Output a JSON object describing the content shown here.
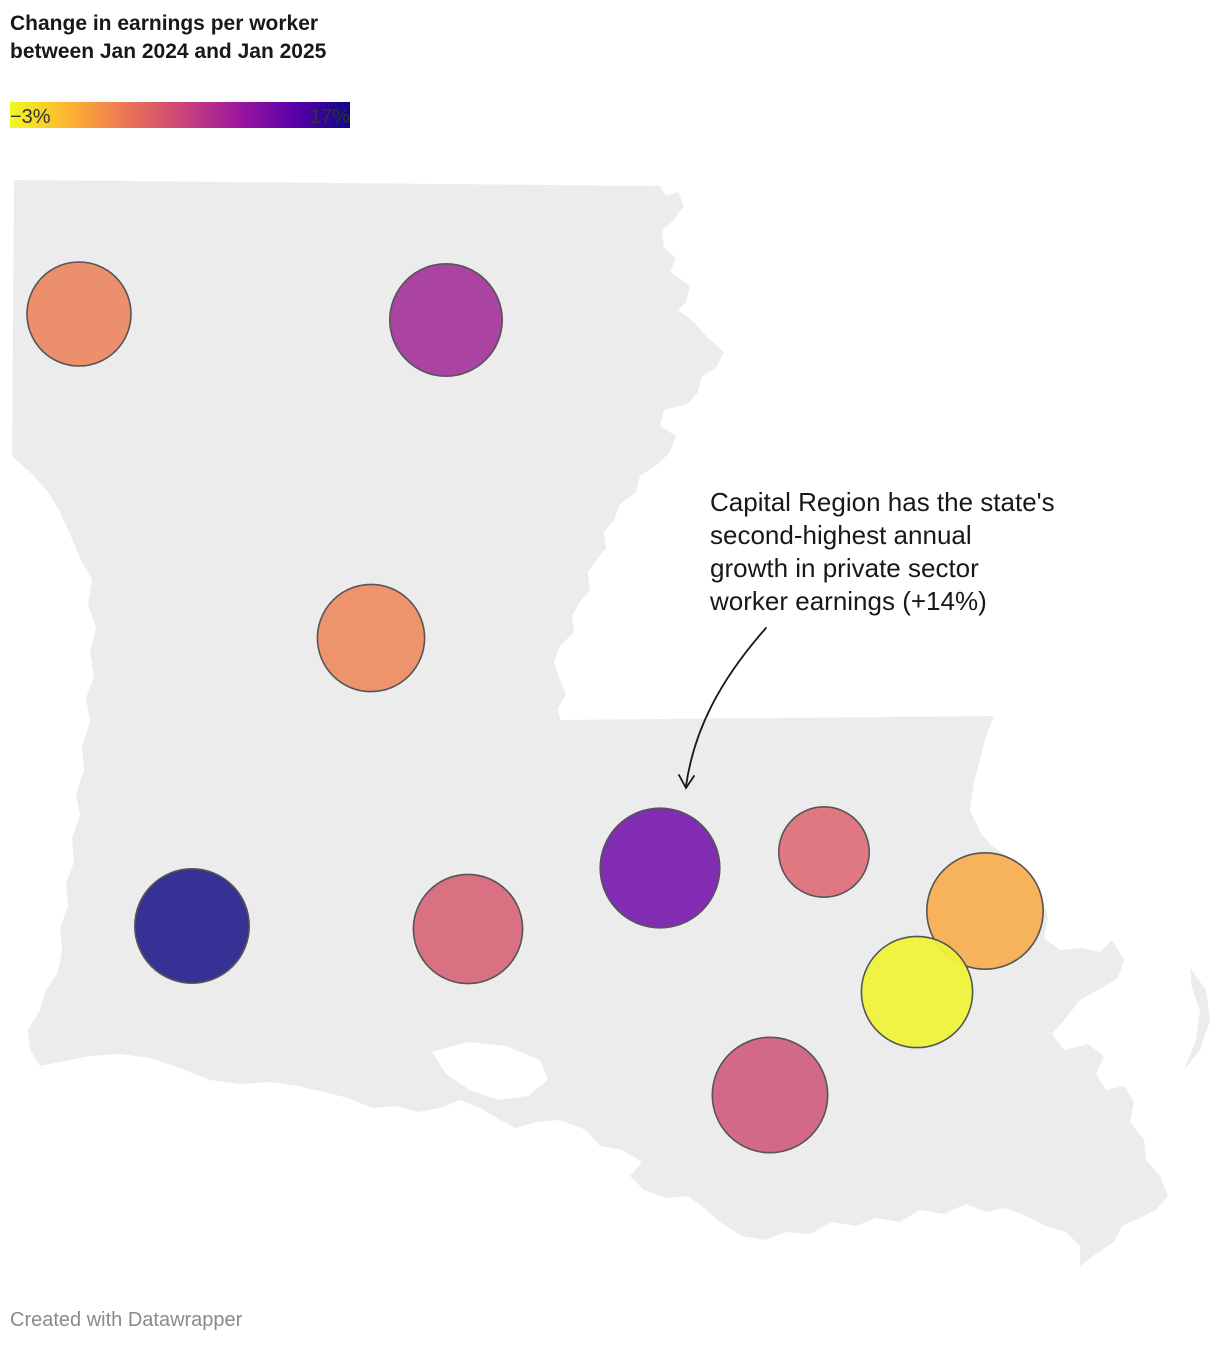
{
  "legend": {
    "title": "Change in earnings per worker between Jan 2024 and Jan 2025",
    "min_label": "−3%",
    "max_label": "17%",
    "gradient_colors": [
      "#f0f921",
      "#fdb42f",
      "#ed7953",
      "#cc4778",
      "#9c179e",
      "#5c01a6",
      "#0d0887"
    ]
  },
  "map": {
    "region": "Louisiana",
    "land_color": "#ececec",
    "bubble_outline_color": "#555555",
    "bubbles": [
      {
        "color": "#ec8a65",
        "size": 1.0
      },
      {
        "color": "#a83a9f",
        "size": 1.08
      },
      {
        "color": "#ee8f66",
        "size": 1.03
      },
      {
        "color": "#2e2790",
        "size": 1.1
      },
      {
        "color": "#d96a7d",
        "size": 1.05
      },
      {
        "color": "#7b22b0",
        "size": 1.15
      },
      {
        "color": "#de727a",
        "size": 0.87
      },
      {
        "color": "#f8b053",
        "size": 1.12
      },
      {
        "color": "#eff33a",
        "size": 1.07
      },
      {
        "color": "#d16281",
        "size": 1.11
      }
    ]
  },
  "annotation": {
    "lines": [
      "Capital Region has the state's",
      "second-highest annual",
      "growth in private sector",
      "worker earnings (+14%)"
    ]
  },
  "footer": {
    "credit": "Created with Datawrapper"
  }
}
